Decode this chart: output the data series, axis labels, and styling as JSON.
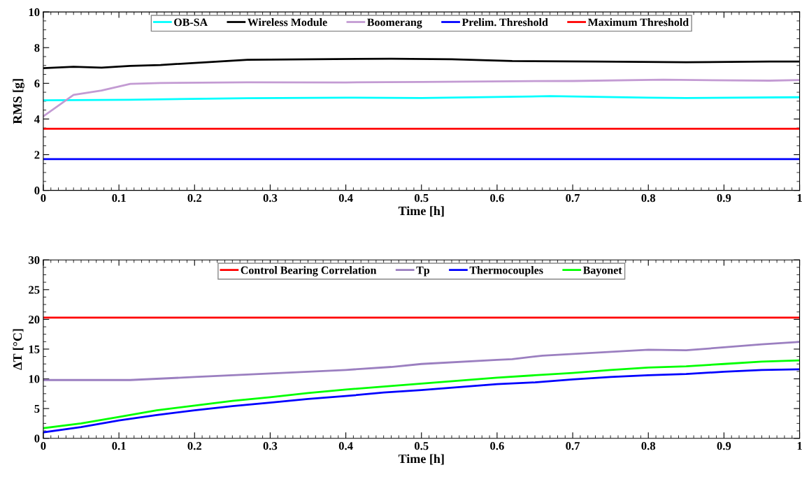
{
  "chart_data": [
    {
      "type": "line",
      "xlabel": "Time [h]",
      "ylabel": "RMS [g]",
      "xlim": [
        0,
        1
      ],
      "ylim": [
        0,
        10
      ],
      "xticks": [
        0,
        0.1,
        0.2,
        0.3,
        0.4,
        0.5,
        0.6,
        0.7,
        0.8,
        0.9,
        1
      ],
      "yticks": [
        0,
        2,
        4,
        6,
        8,
        10
      ],
      "legend": "top",
      "grid": false,
      "series": [
        {
          "name": "OB-SA",
          "color": "#00ffff",
          "x": [
            0,
            0.115,
            0.27,
            0.4,
            0.5,
            0.67,
            0.8,
            0.85,
            1
          ],
          "values": [
            5.05,
            5.08,
            5.17,
            5.2,
            5.18,
            5.28,
            5.2,
            5.18,
            5.22
          ]
        },
        {
          "name": "Wireless Module",
          "color": "#000000",
          "x": [
            0,
            0.04,
            0.077,
            0.115,
            0.155,
            0.27,
            0.46,
            0.54,
            0.62,
            0.73,
            0.85,
            0.96,
            1
          ],
          "values": [
            6.85,
            6.93,
            6.88,
            6.98,
            7.03,
            7.32,
            7.38,
            7.35,
            7.25,
            7.22,
            7.18,
            7.22,
            7.22
          ]
        },
        {
          "name": "Boomerang",
          "color": "#c39bd3",
          "x": [
            0,
            0.04,
            0.077,
            0.115,
            0.155,
            0.27,
            0.4,
            0.5,
            0.62,
            0.7,
            0.82,
            0.96,
            1
          ],
          "values": [
            4.15,
            5.35,
            5.6,
            5.97,
            6.02,
            6.06,
            6.05,
            6.08,
            6.12,
            6.13,
            6.2,
            6.15,
            6.18
          ]
        },
        {
          "name": "Prelim. Threshold",
          "color": "#0000ff",
          "x": [
            0,
            1
          ],
          "values": [
            1.75,
            1.75
          ]
        },
        {
          "name": "Maximum Threshold",
          "color": "#ff0000",
          "x": [
            0,
            1
          ],
          "values": [
            3.45,
            3.45
          ]
        }
      ]
    },
    {
      "type": "line",
      "xlabel": "Time [h]",
      "ylabel": "ΔT [°C]",
      "xlim": [
        0,
        1
      ],
      "ylim": [
        0,
        30
      ],
      "xticks": [
        0,
        0.1,
        0.2,
        0.3,
        0.4,
        0.5,
        0.6,
        0.7,
        0.8,
        0.9,
        1
      ],
      "yticks": [
        0,
        5,
        10,
        15,
        20,
        25,
        30
      ],
      "legend": "top",
      "grid": false,
      "series": [
        {
          "name": "Control Bearing Correlation",
          "color": "#ff0000",
          "x": [
            0,
            1
          ],
          "values": [
            20.3,
            20.3
          ]
        },
        {
          "name": "Tp",
          "color": "#9b7fc0",
          "x": [
            0,
            0.115,
            0.2,
            0.3,
            0.4,
            0.46,
            0.5,
            0.6,
            0.62,
            0.66,
            0.8,
            0.85,
            0.9,
            0.95,
            1
          ],
          "values": [
            9.8,
            9.8,
            10.3,
            10.9,
            11.5,
            12.0,
            12.5,
            13.2,
            13.3,
            13.9,
            14.9,
            14.8,
            15.3,
            15.8,
            16.2
          ]
        },
        {
          "name": "Thermocouples",
          "color": "#0000ff",
          "x": [
            0,
            0.05,
            0.1,
            0.15,
            0.2,
            0.25,
            0.3,
            0.35,
            0.4,
            0.45,
            0.5,
            0.55,
            0.6,
            0.65,
            0.7,
            0.75,
            0.8,
            0.85,
            0.9,
            0.95,
            1
          ],
          "values": [
            1.0,
            1.9,
            3.0,
            3.9,
            4.7,
            5.4,
            6.0,
            6.6,
            7.1,
            7.7,
            8.1,
            8.6,
            9.1,
            9.4,
            9.9,
            10.3,
            10.6,
            10.8,
            11.2,
            11.5,
            11.6
          ]
        },
        {
          "name": "Bayonet",
          "color": "#00ff00",
          "x": [
            0,
            0.05,
            0.1,
            0.15,
            0.2,
            0.25,
            0.3,
            0.35,
            0.4,
            0.45,
            0.5,
            0.55,
            0.6,
            0.65,
            0.7,
            0.75,
            0.8,
            0.85,
            0.9,
            0.95,
            1
          ],
          "values": [
            1.7,
            2.5,
            3.6,
            4.7,
            5.5,
            6.3,
            6.9,
            7.6,
            8.2,
            8.7,
            9.2,
            9.7,
            10.2,
            10.6,
            11.0,
            11.5,
            11.9,
            12.1,
            12.5,
            12.9,
            13.1
          ]
        }
      ]
    }
  ]
}
